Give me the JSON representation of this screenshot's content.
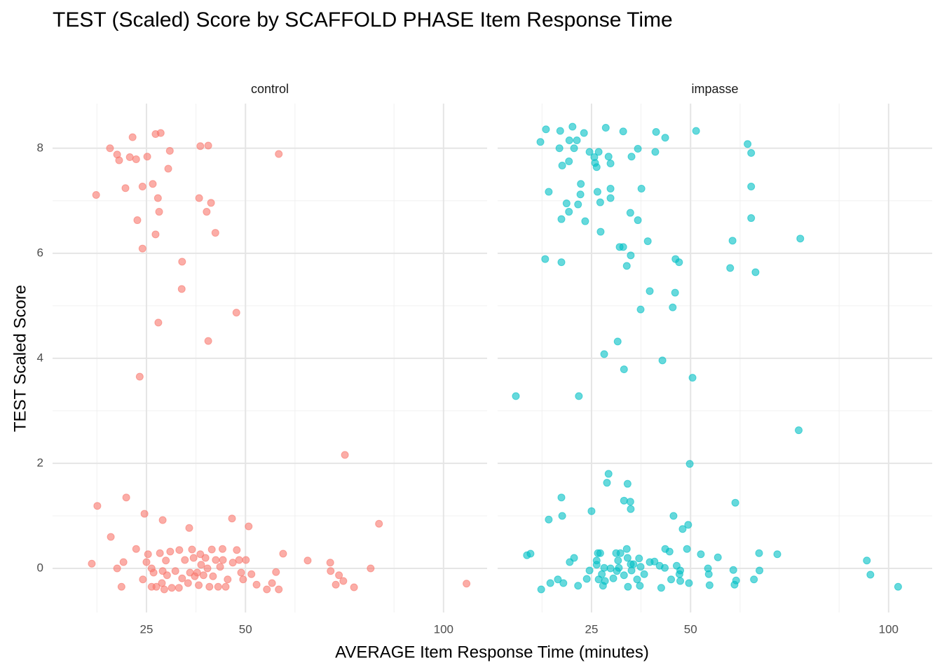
{
  "title": "TEST (Scaled) Score by SCAFFOLD PHASE Item Response Time",
  "x_label": "AVERAGE Item Response Time (minutes)",
  "y_label": "TEST Scaled Score",
  "chart_data": [
    {
      "type": "scatter",
      "title": "control",
      "color": "#F8766D",
      "grid": true,
      "xlim": [
        1.3,
        111
      ],
      "ylim": [
        -0.84,
        8.85
      ],
      "xticks": [
        25,
        50,
        100
      ],
      "xminor": [
        12.5,
        37.5,
        62.5,
        87.5
      ],
      "yticks": [
        0,
        2,
        4,
        6,
        8
      ],
      "yminor": [
        1,
        3,
        5,
        7
      ],
      "x": [
        12.3,
        15.8,
        17.6,
        18.1,
        21.5,
        20.8,
        22.4,
        19.7,
        24.0,
        25.2,
        27.3,
        28.6,
        30.9,
        30.5,
        26.6,
        27.9,
        28.2,
        22.7,
        27.3,
        24.0,
        38.6,
        40.6,
        58.4,
        38.3,
        41.3,
        40.2,
        42.4,
        34.0,
        33.9,
        47.7,
        28.0,
        40.6,
        23.3,
        75.1,
        12.6,
        19.9,
        24.5,
        29.1,
        16.0,
        35.8,
        46.6,
        50.8,
        83.7,
        11.2,
        17.6,
        19.2,
        18.7,
        22.4,
        24.1,
        25.4,
        25.0,
        26.3,
        26.8,
        26.3,
        27.5,
        28.4,
        29.1,
        28.9,
        29.5,
        30.2,
        29.9,
        31.0,
        31.4,
        32.3,
        33.3,
        33.2,
        34.0,
        34.7,
        35.5,
        36.0,
        36.5,
        36.9,
        37.2,
        37.8,
        38.2,
        38.6,
        38.8,
        39.4,
        39.9,
        40.4,
        40.9,
        41.5,
        41.8,
        42.5,
        43.1,
        43.6,
        44.2,
        44.3,
        45.0,
        45.5,
        46.8,
        47.8,
        48.4,
        48.9,
        49.4,
        50.1,
        51.5,
        52.8,
        55.4,
        56.7,
        57.7,
        58.4,
        59.5,
        65.7,
        71.4,
        71.5,
        72.8,
        73.6,
        74.7,
        77.4,
        81.6,
        105.8
      ],
      "y": [
        7.11,
        8.0,
        7.88,
        7.77,
        8.21,
        7.83,
        7.79,
        7.24,
        7.27,
        7.84,
        8.27,
        8.29,
        7.95,
        7.61,
        7.32,
        7.05,
        6.79,
        6.63,
        6.36,
        6.09,
        8.04,
        8.05,
        7.89,
        7.05,
        6.96,
        6.79,
        6.39,
        5.84,
        5.32,
        4.87,
        4.68,
        4.33,
        3.65,
        2.16,
        1.19,
        1.35,
        1.04,
        0.92,
        0.6,
        0.77,
        0.95,
        0.8,
        0.85,
        0.09,
        0.0,
        0.12,
        -0.35,
        0.37,
        -0.21,
        0.27,
        0.12,
        0.0,
        -0.08,
        -0.35,
        -0.35,
        0.29,
        -0.05,
        -0.28,
        -0.4,
        -0.13,
        0.15,
        0.32,
        -0.37,
        -0.05,
        0.35,
        -0.37,
        -0.19,
        0.16,
        -0.28,
        -0.08,
        0.36,
        0.2,
        -0.15,
        -0.08,
        -0.32,
        0.27,
        0.07,
        -0.13,
        0.2,
        0.0,
        -0.35,
        0.36,
        -0.15,
        0.16,
        -0.35,
        0.03,
        0.37,
        0.16,
        -0.35,
        -0.21,
        0.11,
        0.35,
        0.16,
        -0.08,
        -0.21,
        0.16,
        -0.11,
        -0.31,
        -0.4,
        -0.28,
        -0.07,
        -0.4,
        0.28,
        0.15,
        0.11,
        -0.05,
        -0.31,
        -0.13,
        -0.24,
        -0.36,
        0.0,
        -0.29
      ]
    },
    {
      "type": "scatter",
      "title": "impasse",
      "color": "#00BFC4",
      "grid": true,
      "xlim": [
        1.3,
        111
      ],
      "ylim": [
        -0.84,
        8.85
      ],
      "xticks": [
        25,
        50,
        100
      ],
      "xminor": [
        12.5,
        37.5,
        62.5,
        87.5
      ],
      "yminor": [
        1,
        3,
        5,
        7
      ],
      "ygrid": [
        0,
        2,
        4,
        6,
        8
      ],
      "x": [
        12.1,
        13.5,
        17.1,
        20.2,
        23.1,
        16.9,
        19.4,
        21.3,
        20.6,
        24.5,
        26.8,
        28.6,
        33.0,
        29.3,
        25.7,
        25.9,
        26.3,
        29.8,
        19.3,
        17.6,
        36.7,
        35.1,
        41.3,
        43.6,
        41.1,
        51.4,
        64.4,
        65.3,
        65.3,
        65.3,
        14.2,
        22.3,
        22.2,
        26.5,
        29.8,
        37.6,
        29.8,
        27.2,
        21.6,
        18.7,
        19.3,
        17.4,
        23.4,
        34.8,
        36.7,
        27.3,
        39.2,
        32.1,
        33.0,
        60.6,
        77.7,
        34.9,
        13.3,
        17.4,
        33.9,
        46.2,
        47.1,
        60.0,
        66.4,
        39.7,
        46.1,
        45.5,
        37.4,
        31.6,
        28.2,
        42.9,
        33.2,
        50.5,
        5.9,
        21.8,
        77.3,
        49.8,
        29.3,
        28.9,
        34.1,
        17.4,
        33.2,
        34.8,
        61.3,
        34.9,
        25.0,
        45.7,
        17.6,
        14.2,
        49.4,
        48.0,
        8.7,
        9.6,
        20.6,
        19.5,
        14.6,
        12.3,
        16.5,
        17.9,
        21.6,
        23.8,
        24.5,
        26.3,
        26.3,
        26.6,
        27.2,
        26.8,
        27.6,
        27.9,
        28.2,
        28.4,
        29.8,
        30.5,
        31.2,
        31.4,
        31.7,
        31.9,
        32.3,
        33.2,
        33.9,
        34.1,
        34.2,
        34.9,
        35.1,
        35.6,
        36.5,
        37.0,
        37.4,
        37.2,
        38.3,
        39.7,
        40.9,
        42.2,
        42.6,
        43.5,
        43.6,
        44.7,
        45.1,
        46.5,
        47.2,
        47.4,
        47.4,
        49.1,
        49.6,
        52.6,
        54.4,
        54.6,
        54.8,
        56.9,
        60.8,
        61.1,
        61.5,
        66.0,
        67.3,
        67.4,
        71.9,
        94.5,
        95.4,
        102.4
      ],
      "y": [
        8.12,
        8.36,
        8.33,
        8.41,
        8.29,
        8.0,
        8.15,
        8.15,
        8.0,
        7.93,
        7.93,
        8.39,
        8.32,
        7.84,
        7.83,
        7.72,
        7.64,
        7.71,
        7.75,
        7.67,
        7.99,
        7.84,
        8.31,
        8.2,
        7.93,
        8.33,
        8.08,
        7.91,
        7.27,
        6.67,
        7.17,
        7.32,
        7.12,
        7.17,
        7.23,
        7.23,
        7.05,
        6.97,
        6.93,
        6.95,
        6.79,
        6.65,
        6.61,
        6.77,
        6.63,
        6.41,
        6.23,
        6.12,
        6.12,
        6.24,
        6.28,
        5.96,
        5.89,
        5.83,
        5.76,
        5.89,
        5.83,
        5.72,
        5.64,
        5.28,
        5.25,
        4.97,
        4.93,
        4.32,
        4.08,
        3.96,
        3.79,
        3.63,
        3.28,
        3.28,
        2.63,
        1.99,
        1.8,
        1.63,
        1.61,
        1.35,
        1.29,
        1.27,
        1.25,
        1.13,
        1.09,
        1.0,
        1.0,
        0.93,
        0.83,
        0.75,
        0.25,
        0.28,
        0.2,
        0.12,
        -0.28,
        -0.4,
        -0.21,
        -0.28,
        -0.33,
        -0.2,
        -0.04,
        0.15,
        0.07,
        0.29,
        0.29,
        -0.21,
        -0.11,
        -0.33,
        0.01,
        -0.24,
        0.0,
        -0.19,
        0.29,
        -0.05,
        0.15,
        0.01,
        0.29,
        -0.13,
        0.37,
        0.2,
        -0.35,
        0.08,
        -0.04,
        0.08,
        -0.21,
        0.19,
        0.03,
        -0.33,
        -0.11,
        0.12,
        0.13,
        0.05,
        -0.37,
        0.01,
        0.37,
        0.32,
        -0.21,
        0.05,
        -0.11,
        -0.04,
        -0.24,
        0.37,
        -0.28,
        0.27,
        0.0,
        -0.11,
        -0.32,
        0.21,
        -0.03,
        -0.31,
        -0.23,
        -0.21,
        0.29,
        -0.04,
        0.27,
        0.15,
        -0.12,
        -0.35
      ]
    }
  ]
}
